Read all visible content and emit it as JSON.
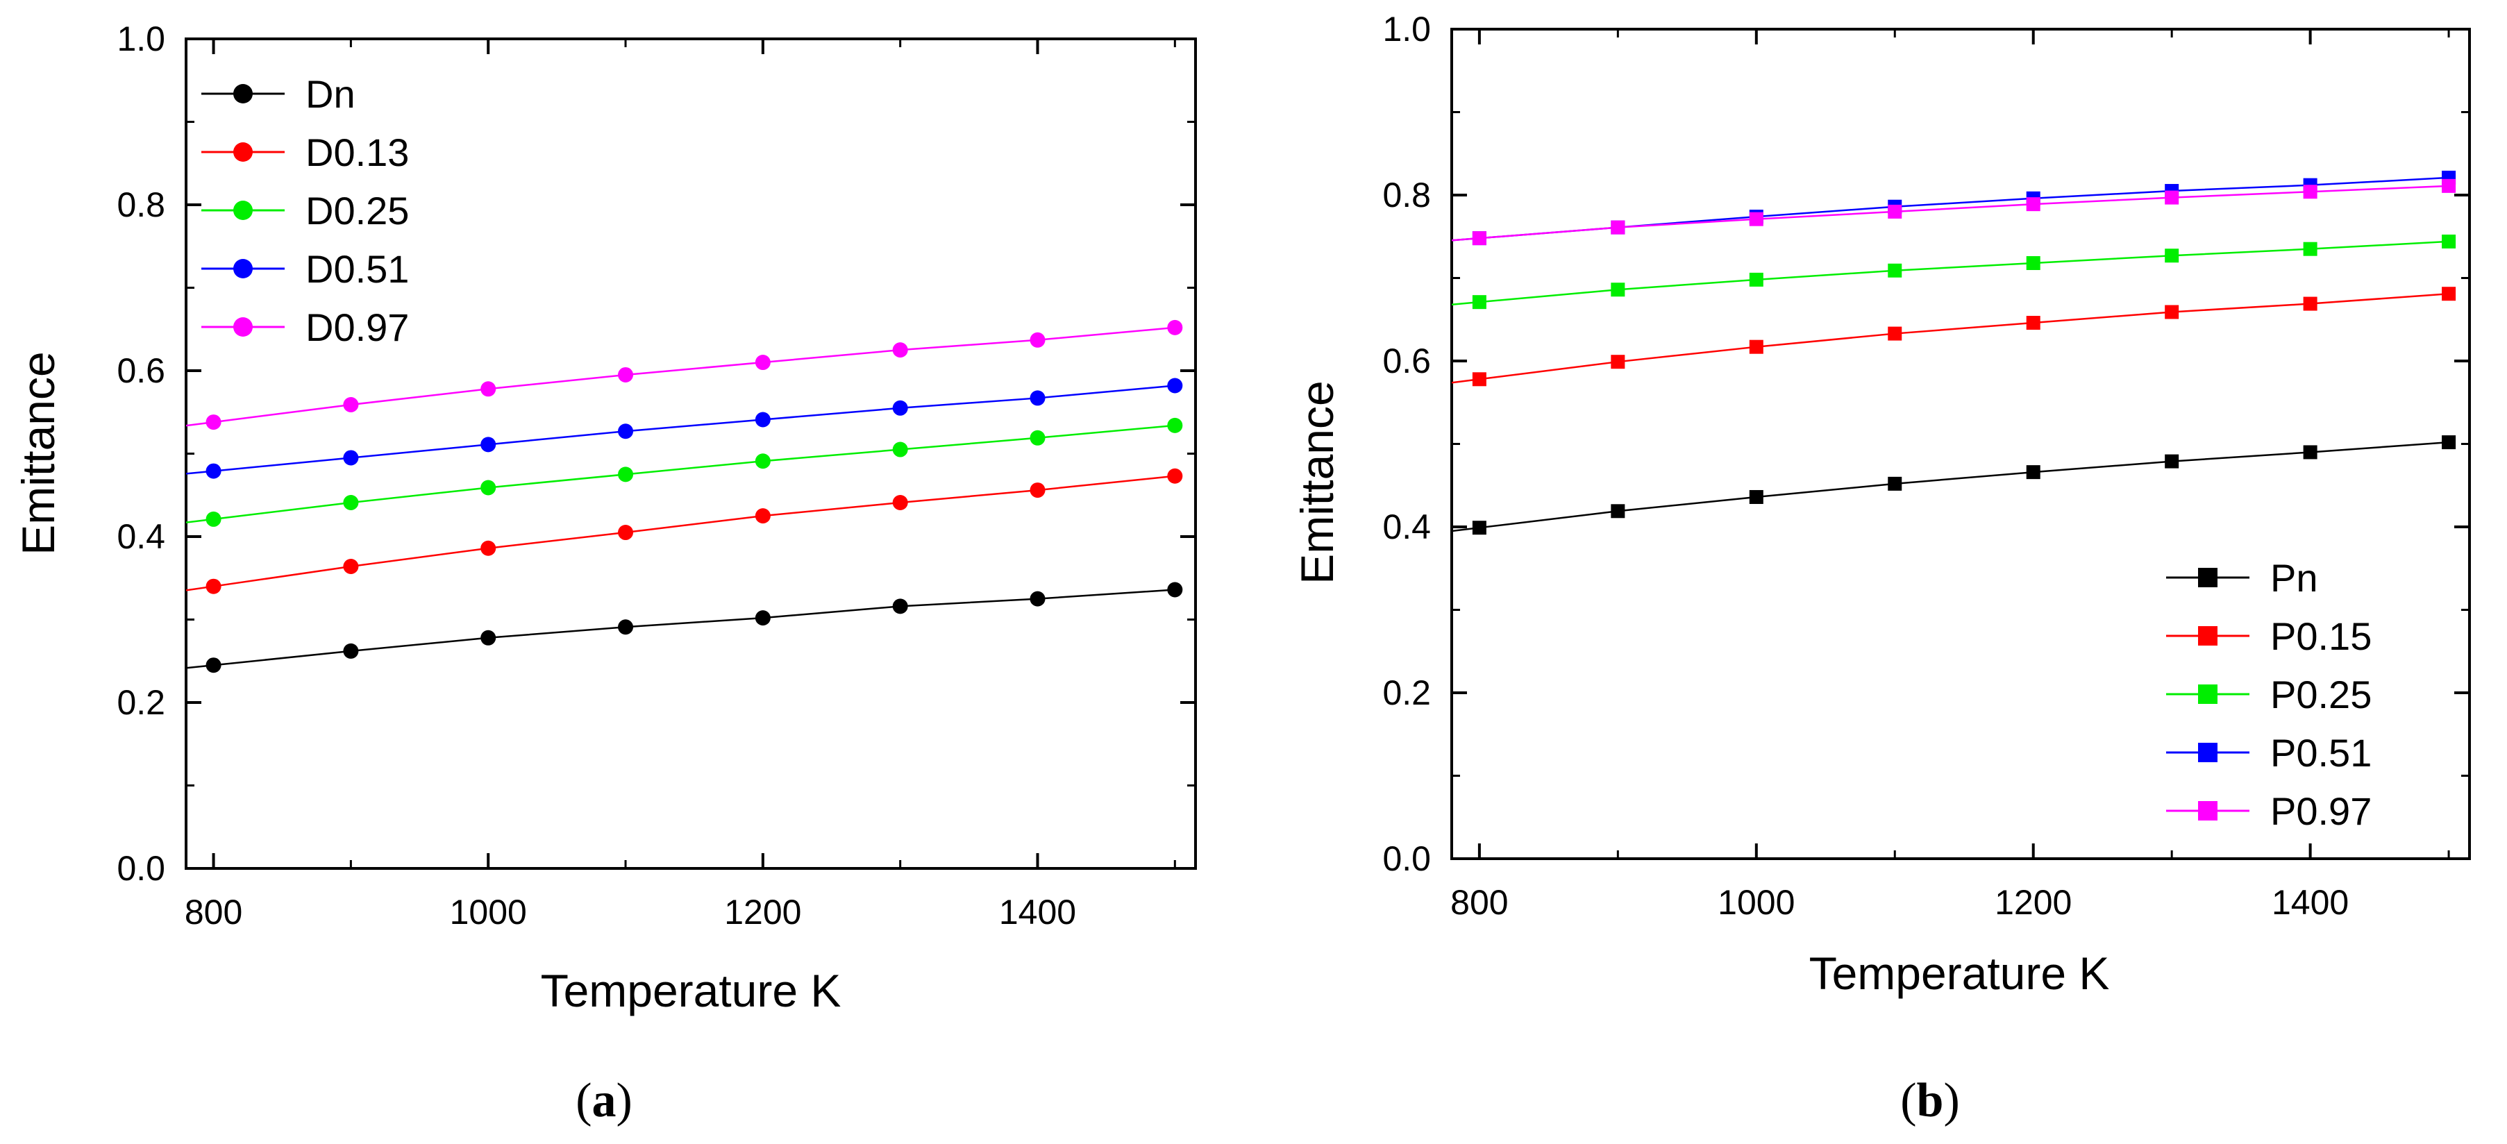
{
  "chart_data": [
    {
      "type": "line",
      "panel_label": "a",
      "xlabel": "Temperature K",
      "ylabel": "Emittance",
      "xlim": [
        780,
        1515
      ],
      "ylim": [
        0.0,
        1.0
      ],
      "xticks": [
        800,
        1000,
        1200,
        1400
      ],
      "xtick_labels": [
        "800",
        "1000",
        "1200",
        "1400"
      ],
      "yticks": [
        0.0,
        0.2,
        0.4,
        0.6,
        0.8,
        1.0
      ],
      "ytick_labels": [
        "0.0",
        "0.2",
        "0.4",
        "0.6",
        "0.8",
        "1.0"
      ],
      "marker": "circle",
      "legend_position": "top-left",
      "x": [
        800,
        900,
        1000,
        1100,
        1200,
        1300,
        1400,
        1500
      ],
      "series": [
        {
          "name": "Dn",
          "color": "#000000",
          "values": [
            0.245,
            0.262,
            0.278,
            0.291,
            0.302,
            0.316,
            0.325,
            0.336
          ]
        },
        {
          "name": "D0.13",
          "color": "#ff0000",
          "values": [
            0.34,
            0.364,
            0.386,
            0.405,
            0.425,
            0.441,
            0.456,
            0.473
          ]
        },
        {
          "name": "D0.25",
          "color": "#00ee00",
          "values": [
            0.421,
            0.441,
            0.459,
            0.475,
            0.491,
            0.505,
            0.519,
            0.534
          ]
        },
        {
          "name": "D0.51",
          "color": "#0000ff",
          "values": [
            0.479,
            0.495,
            0.511,
            0.527,
            0.541,
            0.555,
            0.567,
            0.582
          ]
        },
        {
          "name": "D0.97",
          "color": "#ff00ff",
          "values": [
            0.538,
            0.559,
            0.578,
            0.595,
            0.61,
            0.625,
            0.637,
            0.652
          ]
        }
      ]
    },
    {
      "type": "line",
      "panel_label": "b",
      "xlabel": "Temperature K",
      "ylabel": "Emittance",
      "xlim": [
        780,
        1515
      ],
      "ylim": [
        0.0,
        1.0
      ],
      "xticks": [
        800,
        1000,
        1200,
        1400
      ],
      "xtick_labels": [
        "800",
        "1000",
        "1200",
        "1400"
      ],
      "yticks": [
        0.0,
        0.2,
        0.4,
        0.6,
        0.8,
        1.0
      ],
      "ytick_labels": [
        "0.0",
        "0.2",
        "0.4",
        "0.6",
        "0.8",
        "1.0"
      ],
      "marker": "square",
      "legend_position": "bottom-right",
      "x": [
        800,
        900,
        1000,
        1100,
        1200,
        1300,
        1400,
        1500
      ],
      "series": [
        {
          "name": "Pn",
          "color": "#000000",
          "values": [
            0.399,
            0.419,
            0.436,
            0.452,
            0.466,
            0.479,
            0.49,
            0.502
          ]
        },
        {
          "name": "P0.15",
          "color": "#ff0000",
          "values": [
            0.578,
            0.599,
            0.617,
            0.633,
            0.646,
            0.659,
            0.669,
            0.681
          ]
        },
        {
          "name": "P0.25",
          "color": "#00ee00",
          "values": [
            0.671,
            0.686,
            0.698,
            0.709,
            0.718,
            0.727,
            0.735,
            0.744
          ]
        },
        {
          "name": "P0.51",
          "color": "#0000ff",
          "values": [
            0.748,
            0.761,
            0.774,
            0.786,
            0.796,
            0.805,
            0.812,
            0.821
          ]
        },
        {
          "name": "P0.97",
          "color": "#ff00ff",
          "values": [
            0.748,
            0.761,
            0.771,
            0.78,
            0.789,
            0.797,
            0.804,
            0.811
          ]
        }
      ]
    }
  ]
}
